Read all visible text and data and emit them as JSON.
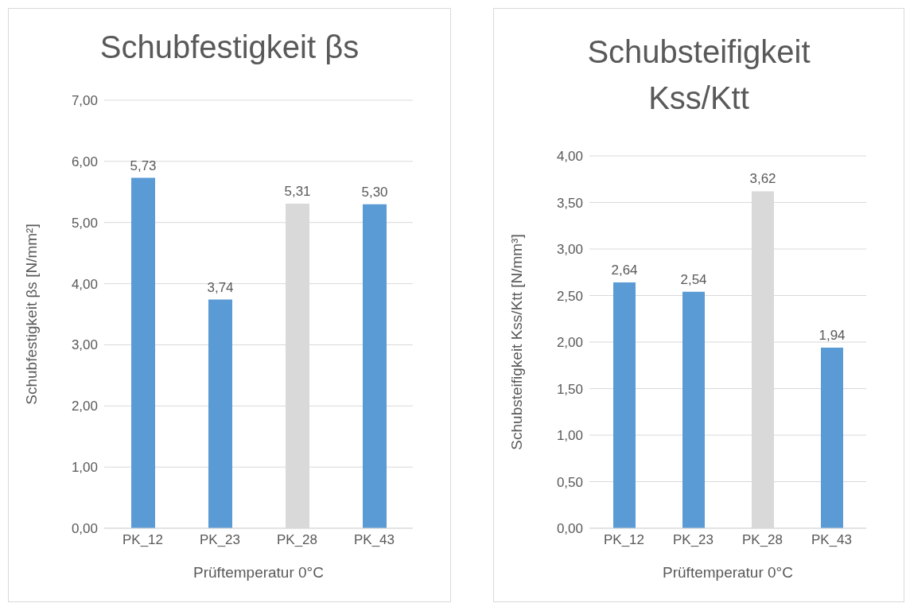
{
  "chart_data": [
    {
      "type": "bar",
      "title": "Schubfestigkeit βs",
      "ylabel": "Schubfestigkeit βs [N/mm²]",
      "xlabel": "Prüftemperatur 0°C",
      "categories": [
        "PK_12",
        "PK_23",
        "PK_28",
        "PK_43"
      ],
      "values": [
        5.73,
        3.74,
        5.31,
        5.3
      ],
      "colors": [
        "#5b9bd5",
        "#5b9bd5",
        "#d9d9d9",
        "#5b9bd5"
      ],
      "value_labels": [
        "5,73",
        "3,74",
        "5,31",
        "5,30"
      ],
      "ylim": [
        0,
        7
      ],
      "yticks": [
        {
          "value": 0,
          "label": "0,00"
        },
        {
          "value": 1,
          "label": "1,00"
        },
        {
          "value": 2,
          "label": "2,00"
        },
        {
          "value": 3,
          "label": "3,00"
        },
        {
          "value": 4,
          "label": "4,00"
        },
        {
          "value": 5,
          "label": "5,00"
        },
        {
          "value": 6,
          "label": "6,00"
        },
        {
          "value": 7,
          "label": "7,00"
        }
      ],
      "grid": "y",
      "legend": false
    },
    {
      "type": "bar",
      "title": "Schubsteifigkeit Kss/Ktt",
      "ylabel": "Schubsteifigkeit Kss/Ktt [N/mm³]",
      "xlabel": "Prüftemperatur 0°C",
      "categories": [
        "PK_12",
        "PK_23",
        "PK_28",
        "PK_43"
      ],
      "values": [
        2.64,
        2.54,
        3.62,
        1.94
      ],
      "colors": [
        "#5b9bd5",
        "#5b9bd5",
        "#d9d9d9",
        "#5b9bd5"
      ],
      "value_labels": [
        "2,64",
        "2,54",
        "3,62",
        "1,94"
      ],
      "ylim": [
        0,
        4
      ],
      "yticks": [
        {
          "value": 0,
          "label": "0,00"
        },
        {
          "value": 0.5,
          "label": "0,50"
        },
        {
          "value": 1,
          "label": "1,00"
        },
        {
          "value": 1.5,
          "label": "1,50"
        },
        {
          "value": 2,
          "label": "2,00"
        },
        {
          "value": 2.5,
          "label": "2,50"
        },
        {
          "value": 3,
          "label": "3,00"
        },
        {
          "value": 3.5,
          "label": "3,50"
        },
        {
          "value": 4,
          "label": "4,00"
        }
      ],
      "grid": "y",
      "legend": false
    }
  ]
}
